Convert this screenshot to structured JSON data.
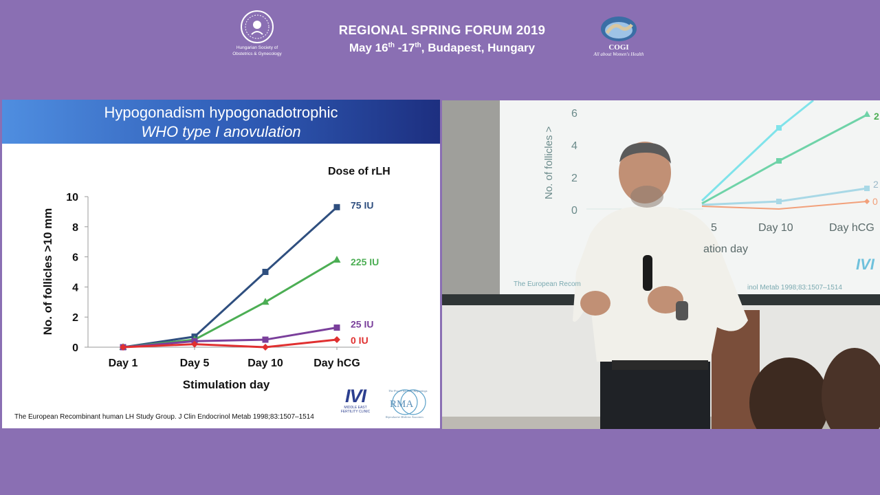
{
  "header": {
    "left_logo_caption_line1": "Hungarian Society of",
    "left_logo_caption_line2": "Obstetrics & Gynecology",
    "forum_title": "REGIONAL SPRING FORUM 2019",
    "date_part1": "May 16",
    "date_sup1": "th",
    "date_part2": " -17",
    "date_sup2": "th",
    "date_part3": ", Budapest, Hungary",
    "right_logo_name": "COGI",
    "right_logo_tagline": "All about Women's Health"
  },
  "slide": {
    "title_line1": "Hypogonadism hypogonadotrophic",
    "title_line2": "WHO type I anovulation",
    "dose_title": "Dose of rLH",
    "citation": "The European Recombinant human LH Study Group. J Clin Endocrinol Metab 1998;83:1507–1514",
    "ivi_logo_text": "IVI",
    "ivi_logo_small_line1": "MIDDLE EAST",
    "ivi_logo_small_line2": "FERTILITY CLINIC",
    "rma_logo_text": "RMA",
    "rma_logo_top": "The Power for New Beginnings",
    "rma_logo_bottom": "Reproductive Medicine Associates"
  },
  "chart_data": {
    "type": "line",
    "categories": [
      "Day 1",
      "Day 5",
      "Day 10",
      "Day hCG"
    ],
    "xlabel": "Stimulation day",
    "ylabel": "No. of follicles >10 mm",
    "ylim": [
      0,
      10
    ],
    "yticks": [
      0,
      2,
      4,
      6,
      8,
      10
    ],
    "legend_title": "Dose of rLH",
    "legend_placement": "right (end-of-line labels)",
    "grid": false,
    "series": [
      {
        "name": "75 IU",
        "values": [
          0,
          0.7,
          5.0,
          9.3
        ],
        "color": "#2f4f7f",
        "marker": "square"
      },
      {
        "name": "225 IU",
        "values": [
          0,
          0.5,
          3.0,
          5.8
        ],
        "color": "#4cae54",
        "marker": "triangle"
      },
      {
        "name": "25 IU",
        "values": [
          0,
          0.4,
          0.5,
          1.3
        ],
        "color": "#7a3f9b",
        "marker": "square"
      },
      {
        "name": "0 IU",
        "values": [
          0,
          0.2,
          0.0,
          0.5
        ],
        "color": "#e03030",
        "marker": "diamond"
      }
    ]
  },
  "camera": {
    "ytick_labels": [
      "6",
      "4",
      "2",
      "0"
    ],
    "xtick_labels": [
      "5",
      "Day 10",
      "Day hCG"
    ],
    "right_labels": [
      "2",
      "2",
      "0"
    ],
    "ylabel": "No. of follicles >",
    "xlabel": "ation day",
    "citation": "The European Recom",
    "citation_tail": "inol Metab 1998;83:1507–1514",
    "logo": "IVI"
  },
  "colors": {
    "background": "#8a6fb3",
    "banner_start": "#4f8ee0",
    "banner_end": "#1d2f80"
  }
}
